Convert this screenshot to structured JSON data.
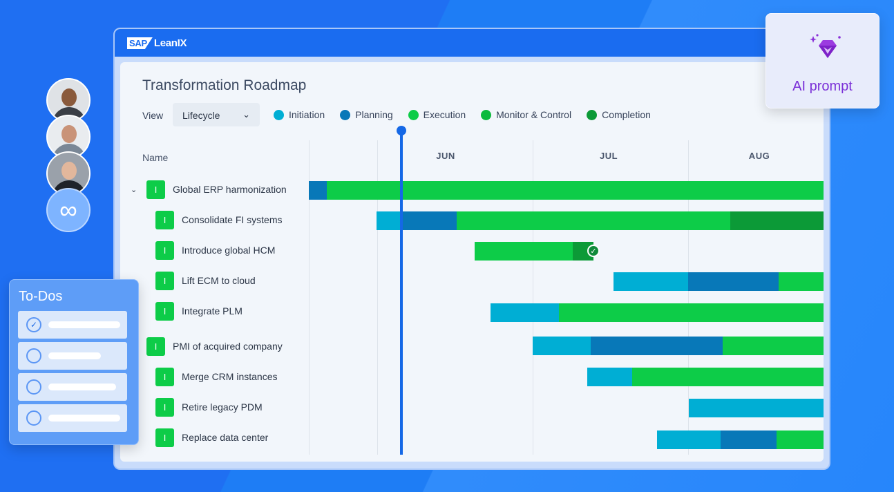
{
  "brand": {
    "sap": "SAP",
    "product": "LeanIX"
  },
  "page": {
    "title": "Transformation Roadmap"
  },
  "view": {
    "label": "View",
    "selected": "Lifecycle"
  },
  "legend": [
    {
      "label": "Initiation",
      "color": "#00aed4"
    },
    {
      "label": "Planning",
      "color": "#0878b8"
    },
    {
      "label": "Execution",
      "color": "#0dcc48"
    },
    {
      "label": "Monitor & Control",
      "color": "#0dba3e"
    },
    {
      "label": "Completion",
      "color": "#0c9a37"
    }
  ],
  "table": {
    "name_header": "Name"
  },
  "months": [
    "JUN",
    "JUL",
    "AUG"
  ],
  "rows": [
    {
      "tag": "I",
      "name": "Global ERP harmonization",
      "expandable": true
    },
    {
      "tag": "I",
      "name": "Consolidate FI systems",
      "expandable": false
    },
    {
      "tag": "I",
      "name": "Introduce global HCM",
      "expandable": false,
      "completed": true
    },
    {
      "tag": "I",
      "name": "Lift ECM to cloud",
      "expandable": false
    },
    {
      "tag": "I",
      "name": "Integrate PLM",
      "expandable": false
    },
    {
      "tag": "I",
      "name": "PMI of acquired company",
      "expandable": false
    },
    {
      "tag": "I",
      "name": "Merge CRM instances",
      "expandable": false
    },
    {
      "tag": "I",
      "name": "Retire legacy PDM",
      "expandable": false
    },
    {
      "tag": "I",
      "name": "Replace data center",
      "expandable": false
    }
  ],
  "todos": {
    "title": "To-Dos",
    "items": [
      {
        "checked": true
      },
      {
        "checked": false
      },
      {
        "checked": false
      },
      {
        "checked": false
      }
    ]
  },
  "ai_prompt": {
    "label": "AI prompt",
    "icon": "diamond-sparkle-icon"
  },
  "avatars": [
    "avatar-man-beard",
    "avatar-man-glasses",
    "avatar-woman",
    "infinity-icon"
  ]
}
